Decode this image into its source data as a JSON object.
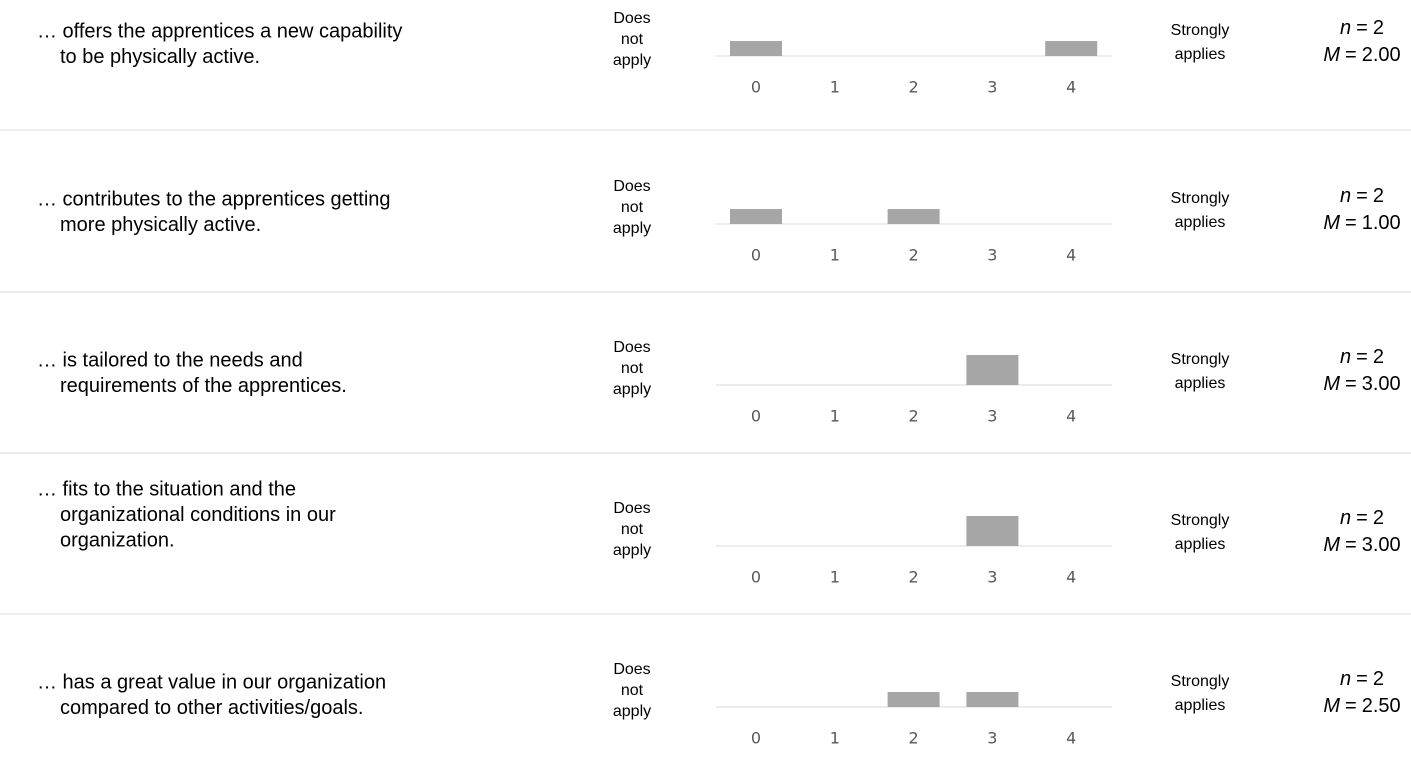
{
  "chart_data": [
    {
      "type": "bar",
      "statement": [
        "… offers the apprentices a new capability",
        "to be physically active."
      ],
      "low_label": [
        "Does",
        "not",
        "apply"
      ],
      "high_label": [
        "Strongly",
        "applies"
      ],
      "categories": [
        "0",
        "1",
        "2",
        "3",
        "4"
      ],
      "values": [
        1,
        0,
        0,
        0,
        1
      ],
      "color": "#a6a6a6",
      "stats": [
        {
          "symbol": "n",
          "relation": "=",
          "value": 2
        },
        {
          "symbol": "M",
          "relation": "=",
          "value": 2,
          "label": "2.00"
        }
      ]
    },
    {
      "type": "bar",
      "statement": [
        "… contributes to the apprentices getting",
        "more physically active."
      ],
      "low_label": [
        "Does",
        "not",
        "apply"
      ],
      "high_label": [
        "Strongly",
        "applies"
      ],
      "categories": [
        "0",
        "1",
        "2",
        "3",
        "4"
      ],
      "values": [
        1,
        0,
        1,
        0,
        0
      ],
      "color": "#a6a6a6",
      "stats": [
        {
          "symbol": "n",
          "relation": "=",
          "value": 2
        },
        {
          "symbol": "M",
          "relation": "=",
          "value": 1,
          "label": "1.00"
        }
      ]
    },
    {
      "type": "bar",
      "statement": [
        "… is tailored to the needs and",
        "requirements of the apprentices."
      ],
      "low_label": [
        "Does",
        "not",
        "apply"
      ],
      "high_label": [
        "Strongly",
        "applies"
      ],
      "categories": [
        "0",
        "1",
        "2",
        "3",
        "4"
      ],
      "values": [
        0,
        0,
        0,
        2,
        0
      ],
      "color": "#a6a6a6",
      "stats": [
        {
          "symbol": "n",
          "relation": "=",
          "value": 2
        },
        {
          "symbol": "M",
          "relation": "=",
          "value": 3,
          "label": "3.00"
        }
      ]
    },
    {
      "type": "bar",
      "statement": [
        "… fits to the situation and the",
        "organizational conditions in our",
        "organization."
      ],
      "low_label": [
        "Does",
        "not",
        "apply"
      ],
      "high_label": [
        "Strongly",
        "applies"
      ],
      "categories": [
        "0",
        "1",
        "2",
        "3",
        "4"
      ],
      "values": [
        0,
        0,
        0,
        2,
        0
      ],
      "color": "#a6a6a6",
      "stats": [
        {
          "symbol": "n",
          "relation": "=",
          "value": 2
        },
        {
          "symbol": "M",
          "relation": "=",
          "value": 3,
          "label": "3.00"
        }
      ]
    },
    {
      "type": "bar",
      "statement": [
        "… has a great value in our organization",
        "compared to other activities/goals."
      ],
      "low_label": [
        "Does",
        "not",
        "apply"
      ],
      "high_label": [
        "Strongly",
        "applies"
      ],
      "categories": [
        "0",
        "1",
        "2",
        "3",
        "4"
      ],
      "values": [
        0,
        0,
        1,
        1,
        0
      ],
      "color": "#a6a6a6",
      "stats": [
        {
          "symbol": "n",
          "relation": "=",
          "value": 2
        },
        {
          "symbol": "M",
          "relation": "=",
          "value": 2.5,
          "label": "2.50"
        }
      ]
    }
  ]
}
